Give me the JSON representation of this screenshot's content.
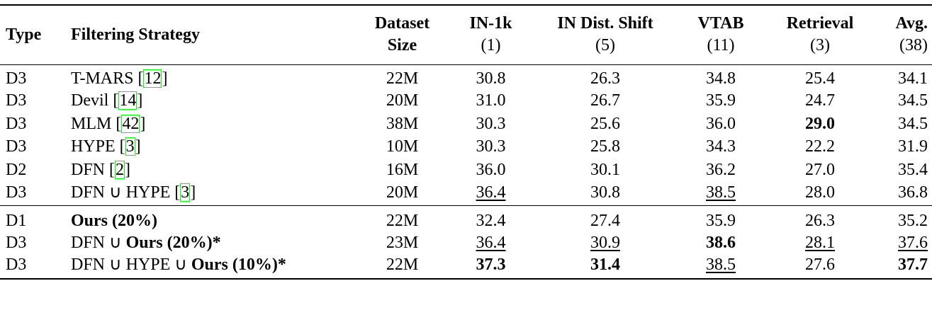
{
  "table": {
    "columns": [
      {
        "title": [
          "Type"
        ]
      },
      {
        "title": [
          "Filtering Strategy"
        ]
      },
      {
        "title": [
          "Dataset",
          "Size"
        ]
      },
      {
        "title": [
          "IN-1k"
        ],
        "count": "(1)"
      },
      {
        "title": [
          "IN Dist. Shift"
        ],
        "count": "(5)"
      },
      {
        "title": [
          "VTAB"
        ],
        "count": "(11)"
      },
      {
        "title": [
          "Retrieval"
        ],
        "count": "(3)"
      },
      {
        "title": [
          "Avg."
        ],
        "count": "(38)"
      }
    ],
    "groups": [
      {
        "rows": [
          {
            "type": "D3",
            "strategy": [
              {
                "text": "T-MARS ["
              },
              {
                "text": "12",
                "style": "cite"
              },
              {
                "text": "]"
              }
            ],
            "size": "22M",
            "scores": [
              "30.8",
              "26.3",
              "34.8",
              "25.4",
              "34.1"
            ],
            "bold": [],
            "underline": []
          },
          {
            "type": "D3",
            "strategy": [
              {
                "text": "Devil ["
              },
              {
                "text": "14",
                "style": "cite"
              },
              {
                "text": "]"
              }
            ],
            "size": "20M",
            "scores": [
              "31.0",
              "26.7",
              "35.9",
              "24.7",
              "34.5"
            ],
            "bold": [],
            "underline": []
          },
          {
            "type": "D3",
            "strategy": [
              {
                "text": "MLM ["
              },
              {
                "text": "42",
                "style": "cite"
              },
              {
                "text": "]"
              }
            ],
            "size": "38M",
            "scores": [
              "30.3",
              "25.6",
              "36.0",
              "29.0",
              "34.5"
            ],
            "bold": [
              3
            ],
            "underline": []
          },
          {
            "type": "D3",
            "strategy": [
              {
                "text": "HYPE ["
              },
              {
                "text": "3",
                "style": "cite"
              },
              {
                "text": "]"
              }
            ],
            "size": "10M",
            "scores": [
              "30.3",
              "25.8",
              "34.3",
              "22.2",
              "31.9"
            ],
            "bold": [],
            "underline": []
          },
          {
            "type": "D2",
            "strategy": [
              {
                "text": "DFN ["
              },
              {
                "text": "2",
                "style": "cite"
              },
              {
                "text": "]"
              }
            ],
            "size": "16M",
            "scores": [
              "36.0",
              "30.1",
              "36.2",
              "27.0",
              "35.4"
            ],
            "bold": [],
            "underline": []
          },
          {
            "type": "D3",
            "strategy": [
              {
                "text": "DFN ∪ HYPE ["
              },
              {
                "text": "3",
                "style": "cite"
              },
              {
                "text": "]"
              }
            ],
            "size": "20M",
            "scores": [
              "36.4",
              "30.8",
              "38.5",
              "28.0",
              "36.8"
            ],
            "bold": [],
            "underline": [
              0,
              2
            ]
          }
        ]
      },
      {
        "rows": [
          {
            "type": "D1",
            "strategy": [
              {
                "text": "Ours (20%)",
                "style": "bold"
              }
            ],
            "size": "22M",
            "scores": [
              "32.4",
              "27.4",
              "35.9",
              "26.3",
              "35.2"
            ],
            "bold": [],
            "underline": []
          },
          {
            "type": "D3",
            "strategy": [
              {
                "text": "DFN ∪ "
              },
              {
                "text": "Ours (20%)*",
                "style": "bold"
              }
            ],
            "size": "23M",
            "scores": [
              "36.4",
              "30.9",
              "38.6",
              "28.1",
              "37.6"
            ],
            "bold": [
              2
            ],
            "underline": [
              0,
              1,
              3,
              4
            ]
          },
          {
            "type": "D3",
            "strategy": [
              {
                "text": "DFN ∪ HYPE ∪ "
              },
              {
                "text": "Ours (10%)*",
                "style": "bold"
              }
            ],
            "size": "22M",
            "scores": [
              "37.3",
              "31.4",
              "38.5",
              "27.6",
              "37.7"
            ],
            "bold": [
              0,
              1,
              4
            ],
            "underline": [
              2
            ]
          }
        ]
      }
    ]
  }
}
